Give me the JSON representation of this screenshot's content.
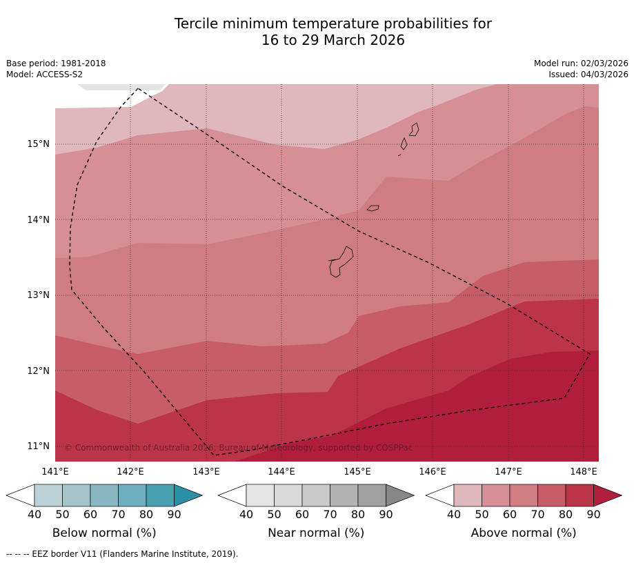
{
  "title": {
    "line1": "Tercile minimum temperature probabilities for",
    "line2": "16 to 29 March 2026"
  },
  "meta": {
    "base_period": "Base period: 1981-2018",
    "model": "Model: ACCESS-S2",
    "model_run": "Model run: 02/03/2026",
    "issued": "Issued: 04/03/2026"
  },
  "map": {
    "lat_labels": [
      "15°N",
      "14°N",
      "13°N",
      "12°N",
      "11°N"
    ],
    "lon_labels": [
      "141°E",
      "142°E",
      "143°E",
      "144°E",
      "145°E",
      "146°E",
      "147°E",
      "148°E"
    ],
    "copyright": "© Commonwealth of Australia 2026, Bureau of Meteorology, supported by COSPPac"
  },
  "legends": [
    {
      "title": "Below normal (%)",
      "ticks": [
        "40",
        "50",
        "60",
        "70",
        "80",
        "90"
      ],
      "colors": [
        "#ffffff",
        "#bcd2d8",
        "#a6c5ca",
        "#8ab6c1",
        "#6eaebf",
        "#48a0b0",
        "#2b90a6"
      ]
    },
    {
      "title": "Near normal (%)",
      "ticks": [
        "40",
        "50",
        "60",
        "70",
        "80",
        "90"
      ],
      "colors": [
        "#ffffff",
        "#e6e6e6",
        "#d9d9d9",
        "#c9c9c9",
        "#b3b3b3",
        "#a0a0a0",
        "#878787"
      ]
    },
    {
      "title": "Above normal (%)",
      "ticks": [
        "40",
        "50",
        "60",
        "70",
        "80",
        "90"
      ],
      "colors": [
        "#ffffff",
        "#e0b7ba",
        "#d58f95",
        "#cf7d83",
        "#c85d6a",
        "#bb3449",
        "#b01e3c"
      ]
    }
  ],
  "footer": "-- -- -- EEZ border V11 (Flanders Marine Institute, 2019)."
}
